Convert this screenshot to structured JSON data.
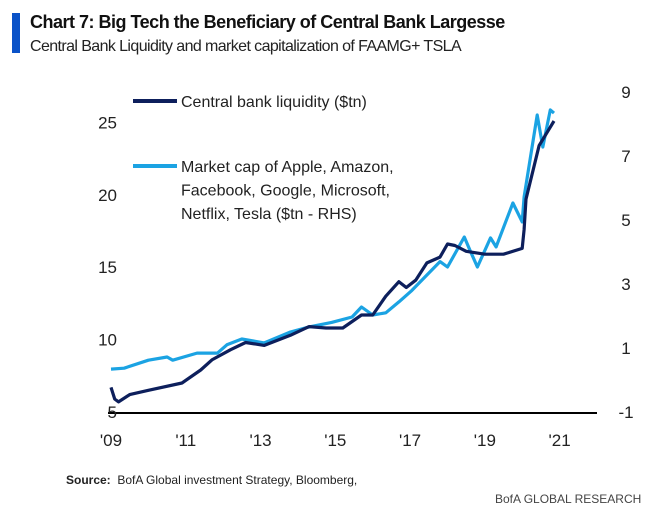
{
  "chart_data": {
    "type": "line",
    "title": "Chart 7: Big Tech the Beneficiary of Central Bank Largesse",
    "subtitle": "Central Bank  Liquidity and market capitalization of FAAMG+ TSLA",
    "x_tick_labels": [
      "'09",
      "'11",
      "'13",
      "'15",
      "'17",
      "'19",
      "'21"
    ],
    "x_ticks": [
      2009,
      2011,
      2013,
      2015,
      2017,
      2019,
      2021
    ],
    "xlim": [
      2009,
      2022
    ],
    "y_left": {
      "ticks": [
        5,
        10,
        15,
        20,
        25
      ],
      "tick_labels": [
        "5",
        "10",
        "15",
        "20",
        "25"
      ],
      "ylim": [
        5,
        27.1
      ]
    },
    "y_right": {
      "ticks": [
        -1,
        1,
        3,
        5,
        7,
        9
      ],
      "tick_labels": [
        "-1",
        "1",
        "3",
        "5",
        "7",
        "9"
      ],
      "ylim": [
        -1,
        9
      ]
    },
    "grid": false,
    "legend_placement": "top-left",
    "series": [
      {
        "name": "Central bank liquidity ($tn)",
        "axis": "left",
        "color": "#0d1f5c",
        "x": [
          2009.0,
          2009.1,
          2009.2,
          2009.5,
          2010.0,
          2010.9,
          2011.4,
          2011.7,
          2012.2,
          2012.6,
          2013.1,
          2013.8,
          2014.3,
          2014.75,
          2015.2,
          2015.7,
          2016.0,
          2016.35,
          2016.7,
          2016.9,
          2017.15,
          2017.45,
          2017.8,
          2018.0,
          2018.2,
          2018.5,
          2019.0,
          2019.5,
          2020.0,
          2020.05,
          2020.1,
          2020.45,
          2020.85
        ],
        "y": [
          6.7,
          5.9,
          5.7,
          6.2,
          6.5,
          7.0,
          7.9,
          8.6,
          9.3,
          9.8,
          9.6,
          10.3,
          10.9,
          10.8,
          10.8,
          11.7,
          11.7,
          13.0,
          14.0,
          13.6,
          14.1,
          15.3,
          15.7,
          16.6,
          16.5,
          16.1,
          15.9,
          15.9,
          16.3,
          17.6,
          19.7,
          23.4,
          25.1
        ]
      },
      {
        "name": "Market cap of Apple, Amazon, Facebook, Google, Microsoft, Netflix, Tesla ($tn - RHS)",
        "legend_lines": [
          "Market cap of Apple, Amazon,",
          "Facebook, Google, Microsoft,",
          "Netflix, Tesla ($tn - RHS)"
        ],
        "axis": "right",
        "color": "#1ba3e3",
        "x": [
          2009.0,
          2009.35,
          2010.0,
          2010.5,
          2010.65,
          2011.3,
          2011.85,
          2012.1,
          2012.5,
          2013.1,
          2013.8,
          2014.3,
          2014.9,
          2015.45,
          2015.7,
          2016.0,
          2016.35,
          2016.7,
          2017.05,
          2017.45,
          2017.8,
          2018.0,
          2018.45,
          2018.6,
          2018.8,
          2019.15,
          2019.3,
          2019.75,
          2020.0,
          2020.05,
          2020.4,
          2020.55,
          2020.75,
          2020.85
        ],
        "y": [
          0.34,
          0.37,
          0.62,
          0.72,
          0.62,
          0.84,
          0.84,
          1.1,
          1.28,
          1.16,
          1.5,
          1.66,
          1.8,
          1.97,
          2.28,
          2.03,
          2.1,
          2.44,
          2.8,
          3.28,
          3.7,
          3.53,
          4.47,
          4.06,
          3.53,
          4.44,
          4.16,
          5.53,
          4.94,
          5.72,
          8.28,
          7.28,
          8.44,
          8.34
        ]
      }
    ]
  },
  "source": {
    "label": "Source:",
    "text": "BofA Global investment Strategy, Bloomberg,"
  },
  "brand": "BofA GLOBAL RESEARCH"
}
